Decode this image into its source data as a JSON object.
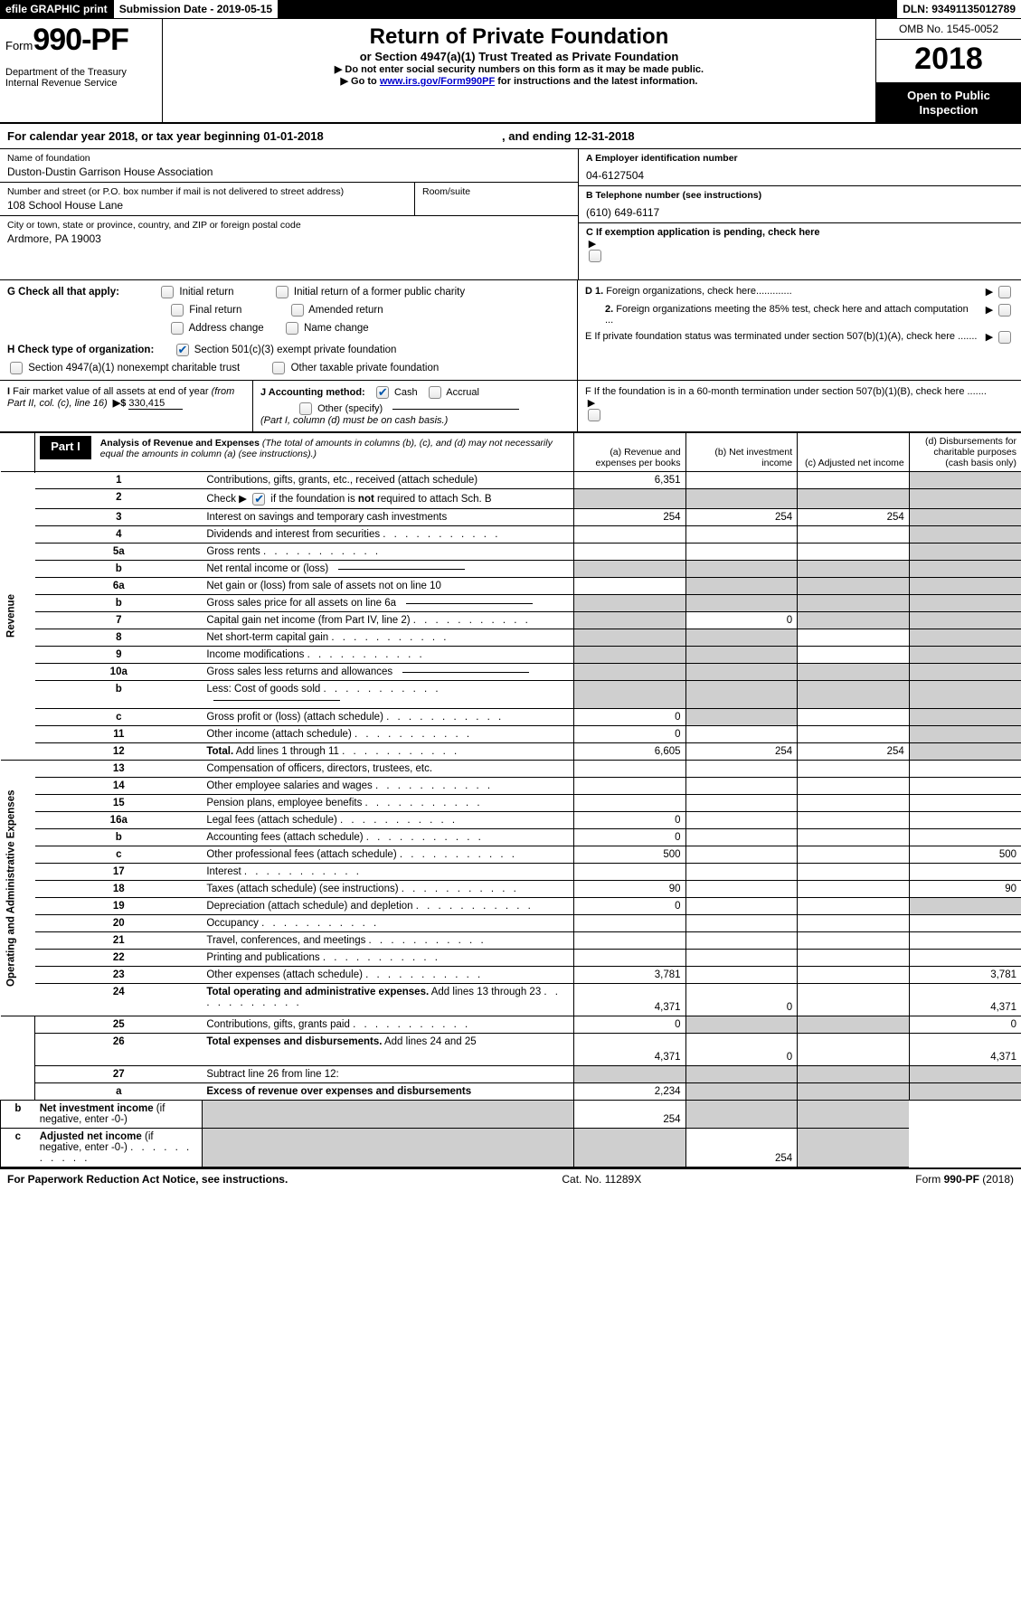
{
  "colors": {
    "black": "#000000",
    "white": "#ffffff",
    "grey_fill": "#cfcfcf",
    "link": "#0000cc",
    "check_blue": "#0055aa"
  },
  "topbar": {
    "efile": "efile GRAPHIC print",
    "submission_label": "Submission Date - 2019-05-15",
    "dln": "DLN: 93491135012789"
  },
  "header": {
    "form_word": "Form",
    "form_number": "990-PF",
    "dept1": "Department of the Treasury",
    "dept2": "Internal Revenue Service",
    "title": "Return of Private Foundation",
    "subtitle": "or Section 4947(a)(1) Trust Treated as Private Foundation",
    "warn": "▶ Do not enter social security numbers on this form as it may be made public.",
    "goto_pre": "▶ Go to ",
    "goto_link": "www.irs.gov/Form990PF",
    "goto_post": " for instructions and the latest information.",
    "omb": "OMB No. 1545-0052",
    "year": "2018",
    "open1": "Open to Public",
    "open2": "Inspection"
  },
  "cal_year": {
    "pre": "For calendar year 2018, or tax year beginning ",
    "start": "01-01-2018",
    "mid": ", and ending ",
    "end": "12-31-2018"
  },
  "id": {
    "name_lbl": "Name of foundation",
    "name": "Duston-Dustin Garrison House Association",
    "street_lbl": "Number and street (or P.O. box number if mail is not delivered to street address)",
    "street": "108 School House Lane",
    "room_lbl": "Room/suite",
    "room": "",
    "city_lbl": "City or town, state or province, country, and ZIP or foreign postal code",
    "city": "Ardmore, PA  19003",
    "a_lbl": "A Employer identification number",
    "a_val": "04-6127504",
    "b_lbl": "B Telephone number (see instructions)",
    "b_val": "(610) 649-6117",
    "c_lbl": "C  If exemption application is pending, check here"
  },
  "g": {
    "label": "G Check all that apply:",
    "opts": {
      "initial": "Initial return",
      "initial_former": "Initial return of a former public charity",
      "final": "Final return",
      "amended": "Amended return",
      "address": "Address change",
      "name": "Name change"
    }
  },
  "h": {
    "label": "H Check type of organization:",
    "opt1": "Section 501(c)(3) exempt private foundation",
    "opt2": "Section 4947(a)(1) nonexempt charitable trust",
    "opt3": "Other taxable private foundation",
    "checked": "opt1"
  },
  "right_items": {
    "d1": "D 1. Foreign organizations, check here.............",
    "d2": "2. Foreign organizations meeting the 85% test, check here and attach computation ...",
    "e": "E   If private foundation status was terminated under section 507(b)(1)(A), check here .......",
    "f": "F   If the foundation is in a 60-month termination under section 507(b)(1)(B), check here ......."
  },
  "i": {
    "label": "I Fair market value of all assets at end of year (from Part II, col. (c), line 16)",
    "sym": "▶$",
    "val": "330,415"
  },
  "j": {
    "label": "J Accounting method:",
    "cash": "Cash",
    "accrual": "Accrual",
    "other": "Other (specify)",
    "note": "(Part I, column (d) must be on cash basis.)",
    "checked": "cash"
  },
  "part1": {
    "badge": "Part I",
    "title": "Analysis of Revenue and Expenses",
    "title_note": "(The total of amounts in columns (b), (c), and (d) may not necessarily equal the amounts in column (a) (see instructions).)",
    "cols": {
      "a": "(a)     Revenue and expenses per books",
      "b": "(b)     Net investment income",
      "c": "(c)     Adjusted net income",
      "d": "(d)     Disbursements for charitable purposes (cash basis only)"
    },
    "side_rev": "Revenue",
    "side_exp": "Operating and Administrative Expenses"
  },
  "rows": [
    {
      "n": "1",
      "desc": "Contributions, gifts, grants, etc., received (attach schedule)",
      "a": "6,351",
      "b": "",
      "c": "",
      "d": "",
      "grey": [
        "d"
      ]
    },
    {
      "n": "2",
      "desc": "Check ▶  ☑  if the foundation is <b>not</b> required to attach Sch. B",
      "a": "",
      "b": "",
      "c": "",
      "d": "",
      "grey": [
        "a",
        "b",
        "c",
        "d"
      ],
      "special": "check2"
    },
    {
      "n": "3",
      "desc": "Interest on savings and temporary cash investments",
      "a": "254",
      "b": "254",
      "c": "254",
      "d": "",
      "grey": [
        "d"
      ]
    },
    {
      "n": "4",
      "desc": "Dividends and interest from securities",
      "dots": true,
      "a": "",
      "b": "",
      "c": "",
      "d": "",
      "grey": [
        "d"
      ]
    },
    {
      "n": "5a",
      "desc": "Gross rents",
      "dots": true,
      "a": "",
      "b": "",
      "c": "",
      "d": "",
      "grey": [
        "d"
      ]
    },
    {
      "n": "b",
      "desc": "Net rental income or (loss)",
      "inlinebox": true,
      "a": "",
      "b": "",
      "c": "",
      "d": "",
      "grey": [
        "a",
        "b",
        "c",
        "d"
      ]
    },
    {
      "n": "6a",
      "desc": "Net gain or (loss) from sale of assets not on line 10",
      "a": "",
      "b": "",
      "c": "",
      "d": "",
      "grey": [
        "b",
        "c",
        "d"
      ]
    },
    {
      "n": "b",
      "desc": "Gross sales price for all assets on line 6a",
      "inlinebox": true,
      "a": "",
      "b": "",
      "c": "",
      "d": "",
      "grey": [
        "a",
        "b",
        "c",
        "d"
      ]
    },
    {
      "n": "7",
      "desc": "Capital gain net income (from Part IV, line 2)",
      "dots": true,
      "a": "",
      "b": "0",
      "c": "",
      "d": "",
      "grey": [
        "a",
        "c",
        "d"
      ]
    },
    {
      "n": "8",
      "desc": "Net short-term capital gain",
      "dots": true,
      "a": "",
      "b": "",
      "c": "",
      "d": "",
      "grey": [
        "a",
        "b",
        "d"
      ]
    },
    {
      "n": "9",
      "desc": "Income modifications",
      "dots": true,
      "a": "",
      "b": "",
      "c": "",
      "d": "",
      "grey": [
        "a",
        "b",
        "d"
      ]
    },
    {
      "n": "10a",
      "desc": "Gross sales less returns and allowances",
      "inlinebox": true,
      "a": "",
      "b": "",
      "c": "",
      "d": "",
      "grey": [
        "a",
        "b",
        "c",
        "d"
      ]
    },
    {
      "n": "b",
      "desc": "Less: Cost of goods sold",
      "dots": true,
      "inlinebox": true,
      "a": "",
      "b": "",
      "c": "",
      "d": "",
      "grey": [
        "a",
        "b",
        "c",
        "d"
      ]
    },
    {
      "n": "c",
      "desc": "Gross profit or (loss) (attach schedule)",
      "dots": true,
      "a": "0",
      "b": "",
      "c": "",
      "d": "",
      "grey": [
        "b",
        "d"
      ]
    },
    {
      "n": "11",
      "desc": "Other income (attach schedule)",
      "dots": true,
      "a": "0",
      "b": "",
      "c": "",
      "d": "",
      "grey": [
        "d"
      ]
    },
    {
      "n": "12",
      "desc": "<b>Total.</b> Add lines 1 through 11",
      "dots": true,
      "a": "6,605",
      "b": "254",
      "c": "254",
      "d": "",
      "grey": [
        "d"
      ]
    },
    {
      "n": "13",
      "desc": "Compensation of officers, directors, trustees, etc.",
      "a": "",
      "b": "",
      "c": "",
      "d": ""
    },
    {
      "n": "14",
      "desc": "Other employee salaries and wages",
      "dots": true,
      "a": "",
      "b": "",
      "c": "",
      "d": ""
    },
    {
      "n": "15",
      "desc": "Pension plans, employee benefits",
      "dots": true,
      "a": "",
      "b": "",
      "c": "",
      "d": ""
    },
    {
      "n": "16a",
      "desc": "Legal fees (attach schedule)",
      "dots": true,
      "a": "0",
      "b": "",
      "c": "",
      "d": ""
    },
    {
      "n": "b",
      "desc": "Accounting fees (attach schedule)",
      "dots": true,
      "a": "0",
      "b": "",
      "c": "",
      "d": ""
    },
    {
      "n": "c",
      "desc": "Other professional fees (attach schedule)",
      "dots": true,
      "a": "500",
      "b": "",
      "c": "",
      "d": "500"
    },
    {
      "n": "17",
      "desc": "Interest",
      "dots": true,
      "a": "",
      "b": "",
      "c": "",
      "d": ""
    },
    {
      "n": "18",
      "desc": "Taxes (attach schedule) (see instructions)",
      "dots": true,
      "a": "90",
      "b": "",
      "c": "",
      "d": "90"
    },
    {
      "n": "19",
      "desc": "Depreciation (attach schedule) and depletion",
      "dots": true,
      "a": "0",
      "b": "",
      "c": "",
      "d": "",
      "grey": [
        "d"
      ]
    },
    {
      "n": "20",
      "desc": "Occupancy",
      "dots": true,
      "a": "",
      "b": "",
      "c": "",
      "d": ""
    },
    {
      "n": "21",
      "desc": "Travel, conferences, and meetings",
      "dots": true,
      "a": "",
      "b": "",
      "c": "",
      "d": ""
    },
    {
      "n": "22",
      "desc": "Printing and publications",
      "dots": true,
      "a": "",
      "b": "",
      "c": "",
      "d": ""
    },
    {
      "n": "23",
      "desc": "Other expenses (attach schedule)",
      "dots": true,
      "a": "3,781",
      "b": "",
      "c": "",
      "d": "3,781"
    },
    {
      "n": "24",
      "desc": "<b>Total operating and administrative expenses.</b> Add lines 13 through 23",
      "dots": true,
      "a": "4,371",
      "b": "0",
      "c": "",
      "d": "4,371",
      "tall": true
    },
    {
      "n": "25",
      "desc": "Contributions, gifts, grants paid",
      "dots": true,
      "a": "0",
      "b": "",
      "c": "",
      "d": "0",
      "grey": [
        "b",
        "c"
      ]
    },
    {
      "n": "26",
      "desc": "<b>Total expenses and disbursements.</b> Add lines 24 and 25",
      "a": "4,371",
      "b": "0",
      "c": "",
      "d": "4,371",
      "tall": true
    },
    {
      "n": "27",
      "desc": "Subtract line 26 from line 12:",
      "a": "",
      "b": "",
      "c": "",
      "d": "",
      "grey": [
        "a",
        "b",
        "c",
        "d"
      ]
    },
    {
      "n": "a",
      "desc": "<b>Excess of revenue over expenses and disbursements</b>",
      "a": "2,234",
      "b": "",
      "c": "",
      "d": "",
      "grey": [
        "b",
        "c",
        "d"
      ]
    },
    {
      "n": "b",
      "desc": "<b>Net investment income</b> (if negative, enter -0-)",
      "a": "",
      "b": "254",
      "c": "",
      "d": "",
      "grey": [
        "a",
        "c",
        "d"
      ]
    },
    {
      "n": "c",
      "desc": "<b>Adjusted net income</b> (if negative, enter -0-)",
      "dots": true,
      "a": "",
      "b": "",
      "c": "254",
      "d": "",
      "grey": [
        "a",
        "b",
        "d"
      ]
    }
  ],
  "footer": {
    "left": "For Paperwork Reduction Act Notice, see instructions.",
    "mid": "Cat. No. 11289X",
    "right_pre": "Form ",
    "right_form": "990-PF",
    "right_post": " (2018)"
  }
}
